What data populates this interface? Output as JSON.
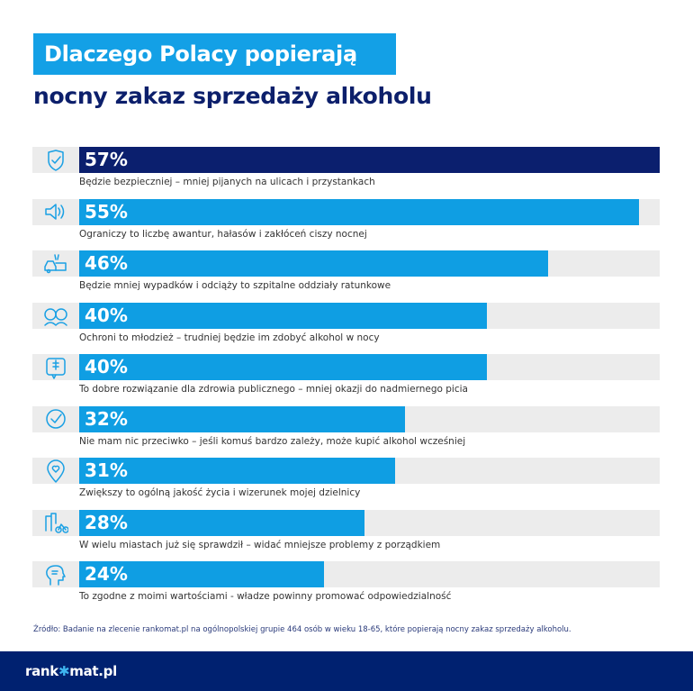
{
  "title_line1": "Dlaczego Polacy popierają",
  "title_line2": "nocny zakaz sprzedaży alkoholu",
  "colors": {
    "highlight_bar": "#0b1f6e",
    "bar": "#0f9ee3",
    "track": "#ececec",
    "title_box": "#13a0e6",
    "footer": "#002170"
  },
  "chart_data": {
    "type": "bar",
    "orientation": "horizontal",
    "xlim": [
      0,
      57
    ],
    "categories": [
      "Będzie bezpieczniej – mniej pijanych na ulicach i przystankach",
      "Ograniczy to liczbę awantur, hałasów i zakłóceń ciszy nocnej",
      "Będzie mniej wypadków i odciąży to szpitalne oddziały ratunkowe",
      "Ochroni to młodzież – trudniej będzie im zdobyć alkohol w nocy",
      "To dobre rozwiązanie dla zdrowia publicznego – mniej okazji do nadmiernego picia",
      "Nie mam nic przeciwko – jeśli komuś bardzo zależy, może kupić alkohol wcześniej",
      "Zwiększy to ogólną jakość życia i wizerunek mojej dzielnicy",
      "W wielu miastach już się sprawdził – widać mniejsze problemy z porządkiem",
      "To zgodne z moimi wartościami - władze powinny promować odpowiedzialność"
    ],
    "values": [
      57,
      55,
      46,
      40,
      40,
      32,
      31,
      28,
      24
    ],
    "value_labels": [
      "57%",
      "55%",
      "46%",
      "40%",
      "40%",
      "32%",
      "31%",
      "28%",
      "24%"
    ],
    "icons": [
      "shield-check-icon",
      "speaker-icon",
      "car-crash-icon",
      "young-people-icon",
      "medical-cross-icon",
      "check-circle-icon",
      "heart-pin-icon",
      "city-bike-icon",
      "head-values-icon"
    ]
  },
  "source": "Źródło: Badanie na zlecenie rankomat.pl na ogólnopolskiej grupie 464 osób w wieku 18-65, które popierają nocny zakaz sprzedaży alkoholu.",
  "logo": "rankomat.pl"
}
